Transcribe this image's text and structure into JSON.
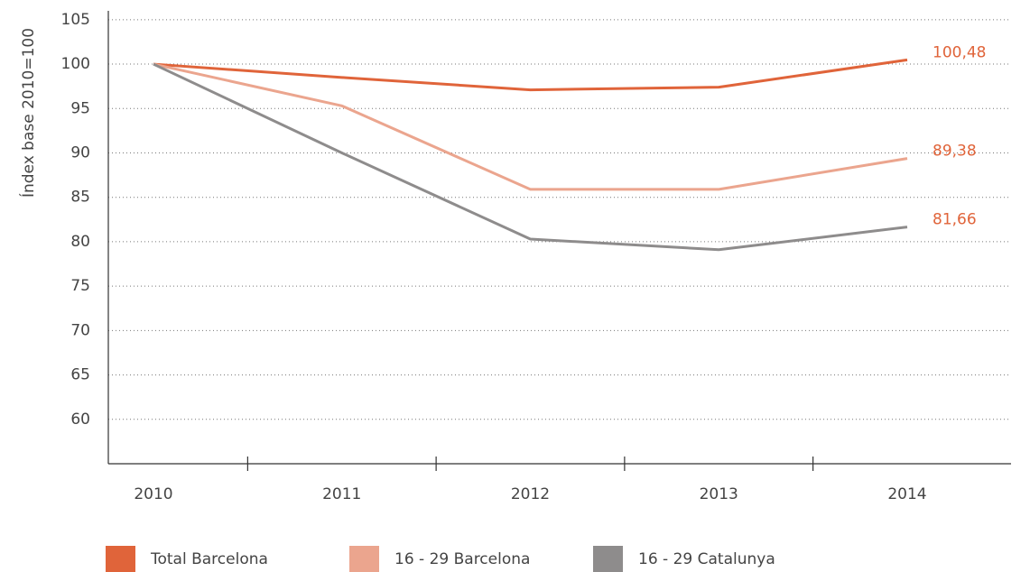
{
  "chart_data": {
    "type": "line",
    "ylabel": "Índex base 2010=100",
    "categories": [
      "2010",
      "2011",
      "2012",
      "2013",
      "2014"
    ],
    "series": [
      {
        "name": "Total Barcelona",
        "color": "#e0643a",
        "values": [
          100,
          98.5,
          97.1,
          97.4,
          100.48
        ],
        "value_labels": [
          null,
          null,
          null,
          null,
          "100,48"
        ]
      },
      {
        "name": "16 - 29 Barcelona",
        "color": "#eba58e",
        "values": [
          100,
          95.3,
          85.9,
          85.9,
          89.38
        ],
        "value_labels": [
          null,
          null,
          null,
          null,
          "89,38"
        ]
      },
      {
        "name": "16 - 29 Catalunya",
        "color": "#8e8c8c",
        "values": [
          100,
          90,
          80.3,
          79.1,
          81.66
        ],
        "value_labels": [
          null,
          null,
          null,
          null,
          "81,66"
        ]
      }
    ],
    "ylim": [
      55,
      106
    ],
    "yticks": [
      60,
      65,
      70,
      75,
      80,
      85,
      90,
      95,
      100,
      105
    ],
    "grid": true,
    "legend": "bottom"
  }
}
